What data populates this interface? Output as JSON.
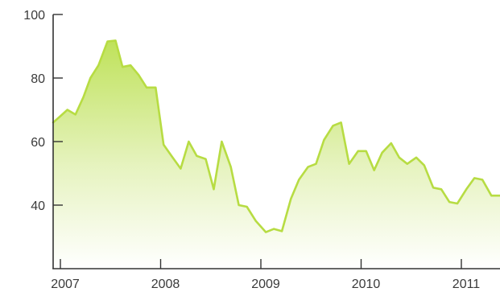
{
  "chart_data": {
    "type": "area",
    "title": "",
    "xlabel": "",
    "ylabel": "",
    "colors": {
      "line": "#b7dc43",
      "fill_top": "#bfe25a",
      "fill_bottom": "#ffffff",
      "axis": "#333333"
    },
    "grid": false,
    "ylim": [
      20,
      100
    ],
    "xlim": [
      2007.0,
      2011.4
    ],
    "y_ticks": [
      {
        "value": 40,
        "label": "40"
      },
      {
        "value": 60,
        "label": "60"
      },
      {
        "value": 80,
        "label": "80"
      },
      {
        "value": 100,
        "label": "100"
      }
    ],
    "x_ticks": [
      {
        "value": 2007,
        "label": "2007"
      },
      {
        "value": 2008,
        "label": "2008"
      },
      {
        "value": 2009,
        "label": "2009"
      },
      {
        "value": 2010,
        "label": "2010"
      },
      {
        "value": 2011,
        "label": "2011"
      }
    ],
    "series": [
      {
        "points": [
          [
            2006.92,
            66.0
          ],
          [
            2007.0,
            68.0
          ],
          [
            2007.07,
            70.0
          ],
          [
            2007.15,
            68.5
          ],
          [
            2007.23,
            74.0
          ],
          [
            2007.3,
            80.0
          ],
          [
            2007.38,
            84.0
          ],
          [
            2007.47,
            91.5
          ],
          [
            2007.55,
            91.8
          ],
          [
            2007.62,
            83.5
          ],
          [
            2007.7,
            84.0
          ],
          [
            2007.78,
            81.0
          ],
          [
            2007.86,
            77.0
          ],
          [
            2007.95,
            77.0
          ],
          [
            2008.03,
            59.0
          ],
          [
            2008.12,
            55.0
          ],
          [
            2008.2,
            51.5
          ],
          [
            2008.28,
            60.0
          ],
          [
            2008.36,
            55.5
          ],
          [
            2008.45,
            54.5
          ],
          [
            2008.53,
            45.0
          ],
          [
            2008.61,
            60.0
          ],
          [
            2008.7,
            52.0
          ],
          [
            2008.78,
            40.0
          ],
          [
            2008.86,
            39.5
          ],
          [
            2008.95,
            35.0
          ],
          [
            2009.05,
            31.5
          ],
          [
            2009.13,
            32.5
          ],
          [
            2009.21,
            31.8
          ],
          [
            2009.3,
            42.0
          ],
          [
            2009.38,
            48.0
          ],
          [
            2009.47,
            52.0
          ],
          [
            2009.55,
            53.0
          ],
          [
            2009.63,
            60.5
          ],
          [
            2009.72,
            65.0
          ],
          [
            2009.8,
            66.0
          ],
          [
            2009.88,
            53.0
          ],
          [
            2009.97,
            57.0
          ],
          [
            2010.05,
            57.0
          ],
          [
            2010.13,
            51.0
          ],
          [
            2010.21,
            56.5
          ],
          [
            2010.3,
            59.5
          ],
          [
            2010.38,
            55.0
          ],
          [
            2010.46,
            53.0
          ],
          [
            2010.55,
            55.0
          ],
          [
            2010.63,
            52.5
          ],
          [
            2010.72,
            45.5
          ],
          [
            2010.8,
            45.0
          ],
          [
            2010.88,
            41.0
          ],
          [
            2010.96,
            40.5
          ],
          [
            2011.05,
            45.0
          ],
          [
            2011.13,
            48.5
          ],
          [
            2011.21,
            48.0
          ],
          [
            2011.3,
            43.0
          ],
          [
            2011.4,
            43.0
          ]
        ]
      }
    ]
  }
}
